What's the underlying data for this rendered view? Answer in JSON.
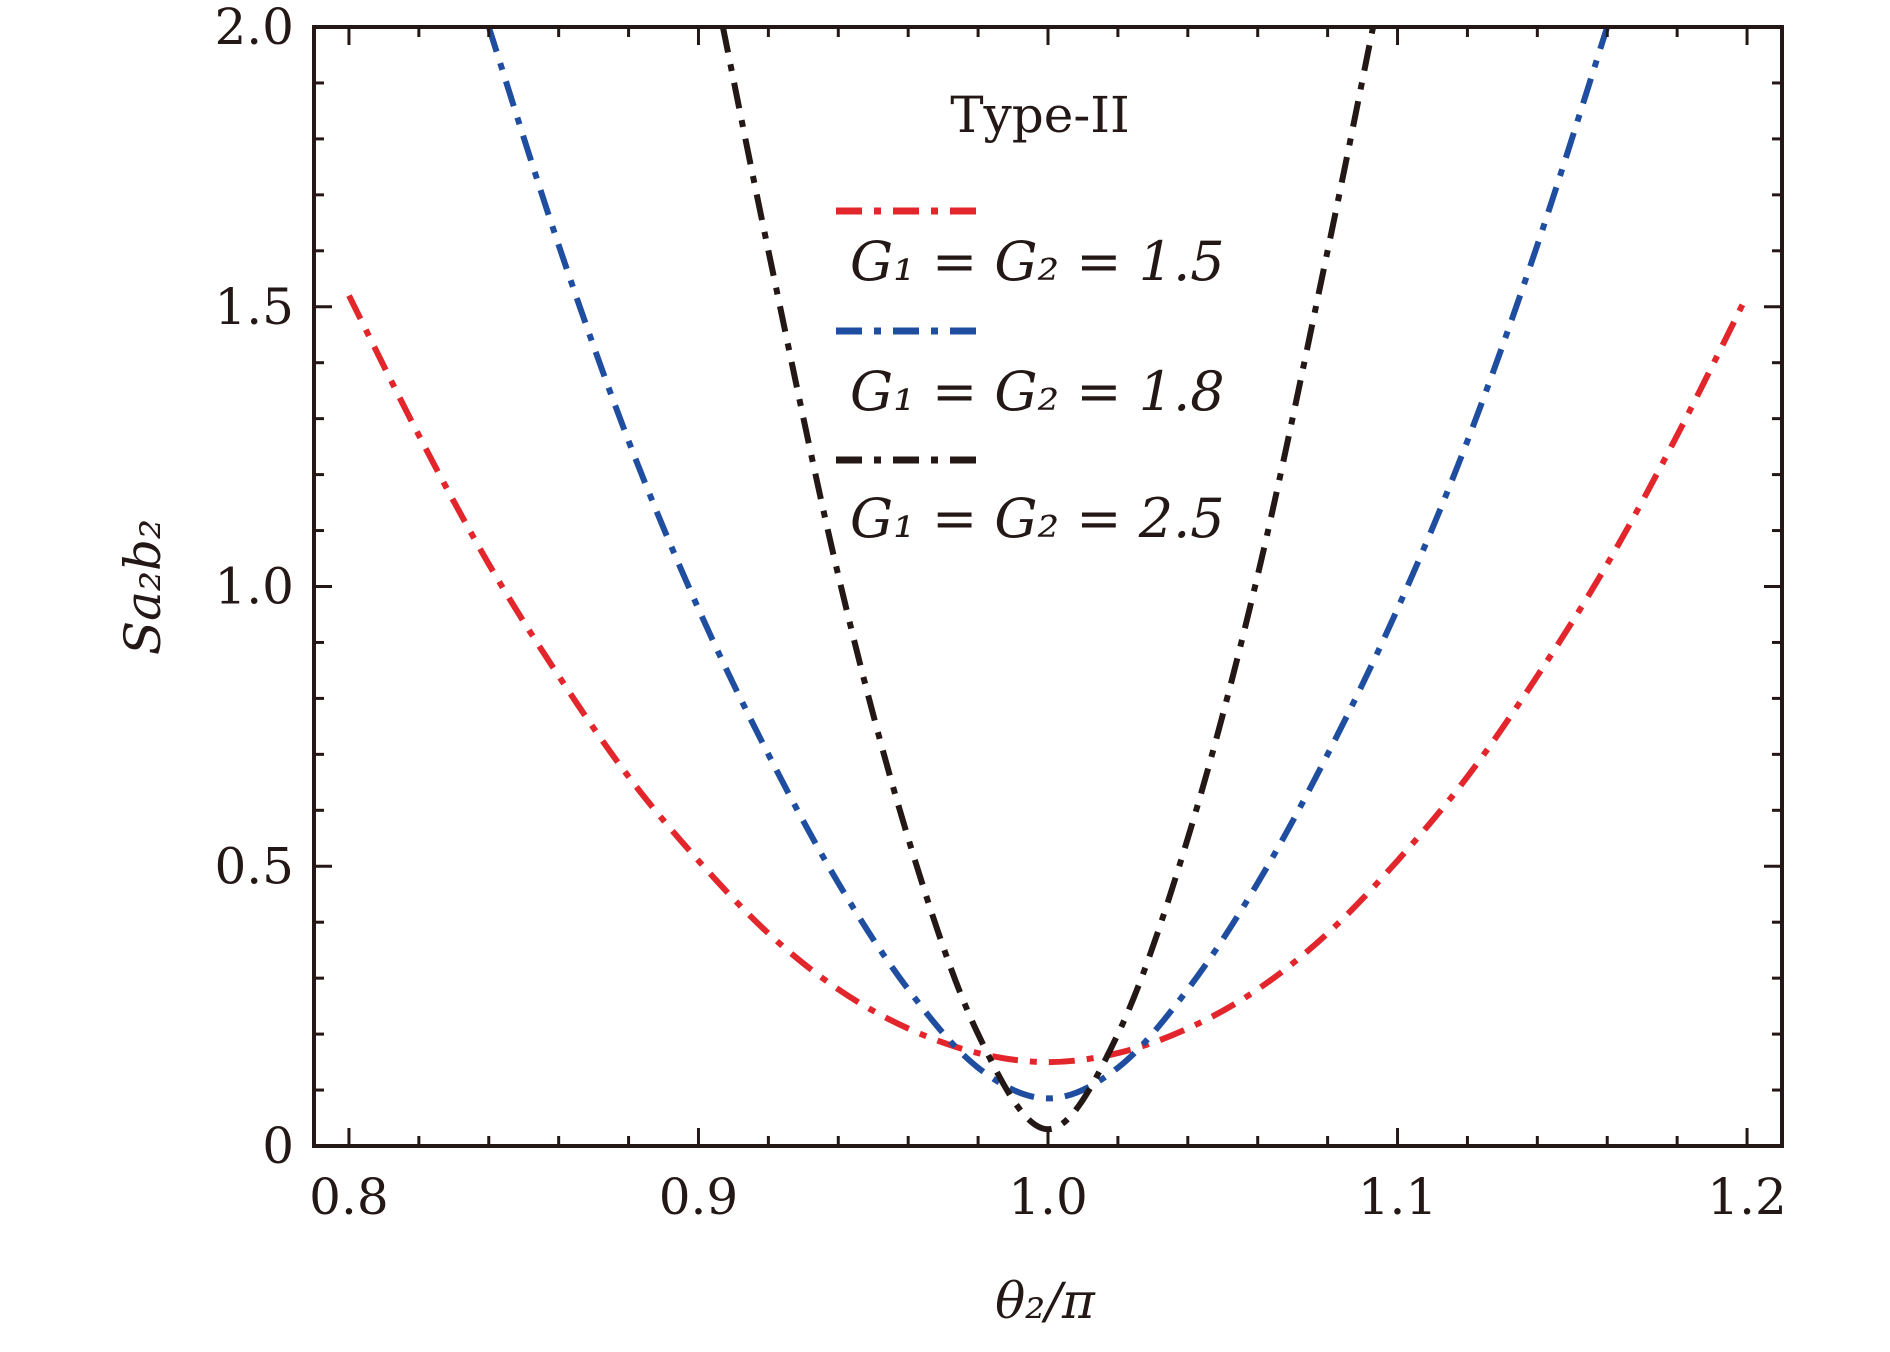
{
  "chart_data": {
    "type": "line",
    "title": "",
    "annotation": "Type-II",
    "xlabel": "θ₂/π",
    "ylabel": "Sa₂b₂",
    "xlim": [
      0.79,
      1.21
    ],
    "ylim": [
      0,
      2.0
    ],
    "x_ticks": [
      0.8,
      0.9,
      1.0,
      1.1,
      1.2
    ],
    "x_tick_labels": [
      "0.8",
      "0.9",
      "1.0",
      "1.1",
      "1.2"
    ],
    "y_ticks": [
      0,
      0.5,
      1.0,
      1.5,
      2.0
    ],
    "y_tick_labels": [
      "0",
      "0.5",
      "1.0",
      "1.5",
      "2.0"
    ],
    "grid": false,
    "legend_position": "top-center",
    "series": [
      {
        "name": "G₁ = G₂ = 1.5",
        "color": "#e3262b",
        "x": [
          0.8,
          0.82,
          0.84,
          0.86,
          0.88,
          0.9,
          0.92,
          0.94,
          0.96,
          0.98,
          1.0,
          1.02,
          1.04,
          1.06,
          1.08,
          1.1,
          1.12,
          1.14,
          1.16,
          1.18,
          1.2
        ],
        "y": [
          1.52,
          1.27,
          1.04,
          0.84,
          0.66,
          0.51,
          0.38,
          0.28,
          0.21,
          0.166,
          0.15,
          0.166,
          0.21,
          0.28,
          0.38,
          0.51,
          0.66,
          0.84,
          1.04,
          1.27,
          1.52
        ]
      },
      {
        "name": "G₁ = G₂ = 1.8",
        "color": "#1f4ea1",
        "x": [
          0.84,
          0.86,
          0.88,
          0.9,
          0.92,
          0.94,
          0.96,
          0.98,
          1.0,
          1.02,
          1.04,
          1.06,
          1.08,
          1.1,
          1.12,
          1.14,
          1.16
        ],
        "y": [
          2.0,
          1.61,
          1.26,
          0.96,
          0.7,
          0.47,
          0.28,
          0.14,
          0.085,
          0.14,
          0.28,
          0.47,
          0.7,
          0.96,
          1.26,
          1.61,
          2.0
        ]
      },
      {
        "name": "G₁ = G₂ = 2.5",
        "color": "#231815",
        "x": [
          0.907,
          0.92,
          0.94,
          0.96,
          0.98,
          1.0,
          1.02,
          1.04,
          1.06,
          1.08,
          1.093
        ],
        "y": [
          2.0,
          1.6,
          1.02,
          0.55,
          0.2,
          0.03,
          0.2,
          0.55,
          1.02,
          1.6,
          2.0
        ]
      }
    ]
  }
}
